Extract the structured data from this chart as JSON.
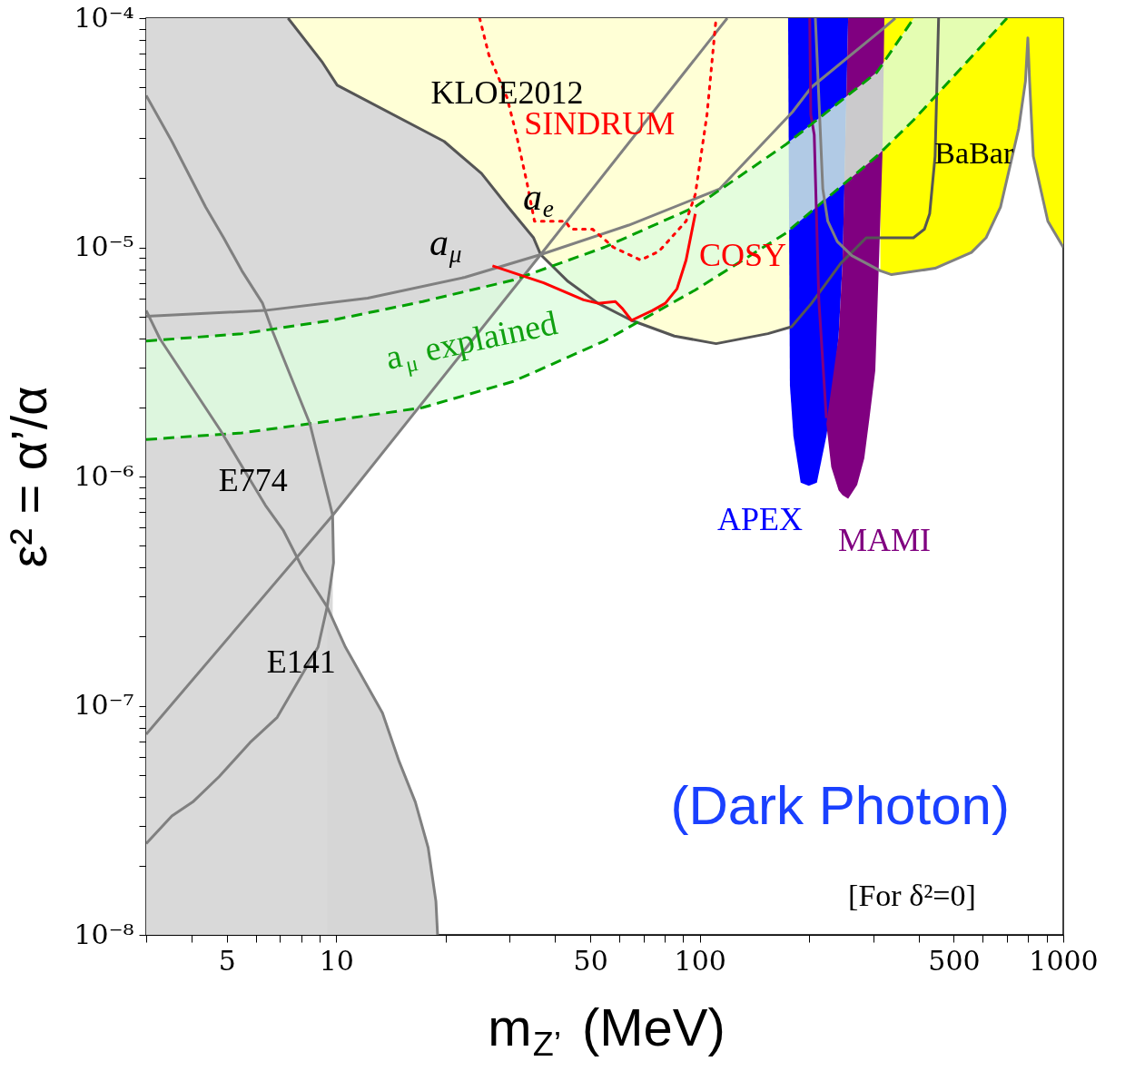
{
  "chart_data": {
    "type": "line",
    "xlabel": "m$_{Z’}$ (MeV)",
    "ylabel": "ε² = α’/α",
    "log": "xy",
    "grid": false,
    "xlim": [
      3,
      1000
    ],
    "ylim": [
      1e-08,
      0.0001
    ],
    "xticks": [
      {
        "value": 3,
        "label": null
      },
      {
        "value": 4,
        "label": null
      },
      5,
      {
        "value": 6,
        "label": null
      },
      {
        "value": 7,
        "label": null
      },
      {
        "value": 8,
        "label": null
      },
      {
        "value": 9,
        "label": null
      },
      10,
      {
        "value": 20,
        "label": null
      },
      {
        "value": 30,
        "label": null
      },
      {
        "value": 40,
        "label": null
      },
      50,
      {
        "value": 60,
        "label": null
      },
      {
        "value": 70,
        "label": null
      },
      {
        "value": 80,
        "label": null
      },
      {
        "value": 90,
        "label": null
      },
      100,
      {
        "value": 200,
        "label": null
      },
      {
        "value": 300,
        "label": null
      },
      {
        "value": 400,
        "label": null
      },
      500,
      {
        "value": 600,
        "label": null
      },
      {
        "value": 700,
        "label": null
      },
      {
        "value": 800,
        "label": null
      },
      {
        "value": 900,
        "label": null
      },
      1000
    ],
    "yticks": [
      {
        "value": 1e-08,
        "label": "10⁻⁸"
      },
      {
        "value": 2e-08,
        "label": null
      },
      {
        "value": 3e-08,
        "label": null
      },
      {
        "value": 4e-08,
        "label": null
      },
      {
        "value": 5e-08,
        "label": null
      },
      {
        "value": 6e-08,
        "label": null
      },
      {
        "value": 7e-08,
        "label": null
      },
      {
        "value": 8e-08,
        "label": null
      },
      {
        "value": 9e-08,
        "label": null
      },
      {
        "value": 1e-07,
        "label": "10⁻⁷"
      },
      {
        "value": 2e-07,
        "label": null
      },
      {
        "value": 3e-07,
        "label": null
      },
      {
        "value": 4e-07,
        "label": null
      },
      {
        "value": 5e-07,
        "label": null
      },
      {
        "value": 6e-07,
        "label": null
      },
      {
        "value": 7e-07,
        "label": null
      },
      {
        "value": 8e-07,
        "label": null
      },
      {
        "value": 9e-07,
        "label": null
      },
      {
        "value": 1e-06,
        "label": "10⁻⁶"
      },
      {
        "value": 2e-06,
        "label": null
      },
      {
        "value": 3e-06,
        "label": null
      },
      {
        "value": 4e-06,
        "label": null
      },
      {
        "value": 5e-06,
        "label": null
      },
      {
        "value": 6e-06,
        "label": null
      },
      {
        "value": 7e-06,
        "label": null
      },
      {
        "value": 8e-06,
        "label": null
      },
      {
        "value": 9e-06,
        "label": null
      },
      {
        "value": 1e-05,
        "label": "10⁻⁵"
      },
      {
        "value": 2e-05,
        "label": null
      },
      {
        "value": 3e-05,
        "label": null
      },
      {
        "value": 4e-05,
        "label": null
      },
      {
        "value": 5e-05,
        "label": null
      },
      {
        "value": 6e-05,
        "label": null
      },
      {
        "value": 7e-05,
        "label": null
      },
      {
        "value": 8e-05,
        "label": null
      },
      {
        "value": 9e-05,
        "label": null
      },
      {
        "value": 0.0001,
        "label": "10⁻⁴"
      }
    ],
    "annotations": [
      "KLOE2012",
      "SINDRUM",
      "a$_{e}$",
      "a$_{μ}$",
      "a$_{μ}$ explained",
      "COSY",
      "BaBar",
      "APEX",
      "MAMI",
      "E774",
      "E141",
      "(Dark Photon)",
      "[For δ²=0]"
    ],
    "series": [
      {
        "color": "#d9d9d9",
        "x": [
          3,
          7.37,
          9.17,
          9.7,
          9.8,
          10.06,
          19.8,
          25.1,
          29.7,
          34.9,
          36.5
        ],
        "values": [
          null,
          null,
          null,
          null,
          null,
          null,
          null,
          null,
          null,
          null,
          null
        ],
        "upper": [
          0.0001,
          0.0001,
          6.4e-05,
          5.5e-05,
          5.4e-05,
          5.1e-05,
          2.9e-05,
          2.1e-05,
          1.5e-05,
          1.1e-05,
          9.3e-06
        ],
        "lower": [
          1e-08,
          1e-08,
          1e-08,
          1e-08,
          6.8e-07,
          7.3e-07,
          2.8e-06,
          4.4e-06,
          6.2e-06,
          8.5e-06,
          9.3e-06
        ]
      },
      {
        "color": "#d6d6d6",
        "x": [
          9.44,
          10.6,
          13.4,
          14.9,
          16.5,
          17.9,
          18.8,
          19.0
        ],
        "values": [
          null,
          null,
          null,
          null,
          null,
          null,
          null,
          null
        ],
        "upper": [
          2.7e-07,
          1.8e-07,
          9.3e-08,
          5.7e-08,
          3.8e-08,
          2.4e-08,
          1.4e-08,
          1e-08
        ],
        "lower": [
          1e-08,
          1e-08,
          1e-08,
          1e-08,
          1e-08,
          1e-08,
          1e-08,
          1e-08
        ]
      },
      {
        "color": "#ffffd6",
        "x": [
          7.37,
          9.17,
          10.06,
          19.8,
          25.1,
          29.7,
          34.9,
          36.5,
          43.4,
          52.5,
          64.9,
          85.1,
          110.9,
          154,
          178.9,
          203,
          244,
          287,
          314.5,
          387,
          415,
          429,
          444,
          454
        ],
        "values": [
          null,
          null,
          null,
          null,
          null,
          null,
          null,
          null,
          null,
          null,
          null,
          null,
          null,
          null,
          null,
          null,
          null,
          null,
          null,
          null,
          null,
          null,
          null,
          null
        ],
        "lower": [
          0.0001,
          6.4e-05,
          5.1e-05,
          2.9e-05,
          2.1e-05,
          1.5e-05,
          1.1e-05,
          9.3e-06,
          7.1e-06,
          5.7e-06,
          4.8e-06,
          4.1e-06,
          3.8e-06,
          4.2e-06,
          4.5e-06,
          5.7e-06,
          8.5e-06,
          1.1e-05,
          1.1e-05,
          1.1e-05,
          1.2e-05,
          1.4e-05,
          2.5e-05,
          0.0001
        ],
        "upper": [
          0.0001,
          0.0001,
          0.0001,
          0.0001,
          0.0001,
          0.0001,
          0.0001,
          0.0001,
          0.0001,
          0.0001,
          0.0001,
          0.0001,
          0.0001,
          0.0001,
          0.0001,
          0.0001,
          0.0001,
          0.0001,
          0.0001,
          0.0001,
          0.0001,
          0.0001,
          0.0001,
          0.0001
        ]
      },
      {
        "color": "#ffff00",
        "x": [
          314,
          337,
          444,
          559,
          613,
          672,
          754,
          787,
          799,
          808,
          827,
          907,
          1000
        ],
        "values": [
          null,
          null,
          null,
          null,
          null,
          null,
          null,
          null,
          null,
          null,
          null,
          null,
          null
        ],
        "upper": [
          0.0001,
          0.0001,
          0.0001,
          0.0001,
          0.0001,
          0.0001,
          0.0001,
          0.0001,
          0.0001,
          0.0001,
          0.0001,
          0.0001,
          0.0001
        ],
        "lower": [
          7.9e-06,
          7.6e-06,
          8.1e-06,
          9.5e-06,
          1.1e-05,
          1.5e-05,
          3.3e-05,
          5.3e-05,
          8.2e-05,
          5.3e-05,
          2.5e-05,
          1.3e-05,
          1e-05
        ]
      },
      {
        "color": "#0000ff",
        "x": [
          175,
          177,
          181,
          189.5,
          199.5,
          210,
          223,
          233,
          241,
          247,
          250,
          256
        ],
        "values": [
          null,
          null,
          null,
          null,
          null,
          null,
          null,
          null,
          null,
          null,
          null,
          null
        ],
        "lower": [
          0.0001,
          2.5e-06,
          1.5e-06,
          9.4e-07,
          9.1e-07,
          9.4e-07,
          1.5e-06,
          2.4e-06,
          4.1e-06,
          8.5e-06,
          1.8e-05,
          0.0001
        ],
        "upper": [
          0.0001,
          0.0001,
          0.0001,
          0.0001,
          0.0001,
          0.0001,
          0.0001,
          0.0001,
          0.0001,
          0.0001,
          0.0001,
          0.0001
        ]
      },
      {
        "color": "#800080",
        "x": [
          223,
          230,
          241,
          247,
          256,
          271,
          283.5,
          293,
          304,
          311,
          318,
          322
        ],
        "values": [
          null,
          null,
          null,
          null,
          null,
          null,
          null,
          null,
          null,
          null,
          null,
          null
        ],
        "lower": [
          1.7e-06,
          1.1e-06,
          8.7e-07,
          8.3e-07,
          8e-07,
          9.2e-07,
          1.2e-06,
          1.8e-06,
          2.9e-06,
          8.5e-06,
          2.5e-05,
          0.0001
        ],
        "upper": [
          1.7e-06,
          2.4e-06,
          4.1e-06,
          8.5e-06,
          0.0001,
          0.0001,
          0.0001,
          0.0001,
          0.0001,
          0.0001,
          0.0001,
          0.0001
        ]
      },
      {
        "color": "#ddfcdf",
        "x": [
          3,
          5.5,
          9.7,
          17.3,
          30.7,
          54.6,
          97,
          172,
          307,
          388,
          700
        ],
        "values": [
          null,
          null,
          null,
          null,
          null,
          null,
          null,
          null,
          null,
          null,
          null
        ],
        "lower": [
          1.45e-06,
          1.55e-06,
          1.75e-06,
          2e-06,
          2.6e-06,
          3.9e-06,
          6.5e-06,
          1.15e-05,
          2.5e-05,
          3.6e-05,
          0.0001
        ],
        "upper": [
          3.9e-06,
          4.2e-06,
          4.8e-06,
          5.8e-06,
          7.2e-06,
          1e-05,
          1.5e-05,
          2.8e-05,
          5.8e-05,
          0.0001,
          0.0001
        ]
      },
      {
        "color": "#555555",
        "x": [
          7.37,
          9.17,
          10.06,
          19.8,
          25.1,
          29.7,
          34.9,
          36.5,
          43.4,
          52.5,
          64.9,
          85.1,
          110.9,
          154,
          178.9,
          203,
          244,
          287,
          314.5,
          387,
          415,
          429,
          444,
          454
        ],
        "values": [
          0.0001,
          6.4e-05,
          5.1e-05,
          2.9e-05,
          2.1e-05,
          1.5e-05,
          1.1e-05,
          9.3e-06,
          7.1e-06,
          5.7e-06,
          4.8e-06,
          4.1e-06,
          3.8e-06,
          4.2e-06,
          4.5e-06,
          5.7e-06,
          8.5e-06,
          1.1e-05,
          1.1e-05,
          1.1e-05,
          1.2e-05,
          1.4e-05,
          2.5e-05,
          0.0001
        ]
      },
      {
        "color": "#00a000",
        "line_style": "dashed",
        "x": [
          3,
          5.5,
          9.7,
          17.3,
          30.7,
          54.6,
          97,
          172,
          307,
          388,
          700
        ],
        "values": [
          1.45e-06,
          1.55e-06,
          1.75e-06,
          2e-06,
          2.6e-06,
          3.9e-06,
          6.5e-06,
          1.15e-05,
          2.5e-05,
          3.6e-05,
          0.0001
        ]
      },
      {
        "color": "#808080",
        "x": [
          3,
          6.35,
          12.2,
          22.6,
          36.5,
          63.8,
          113.5,
          180,
          203,
          322,
          345
        ],
        "values": [
          5e-06,
          5.3e-06,
          6e-06,
          7.4e-06,
          9.3e-06,
          1.25e-05,
          1.8e-05,
          3.9e-05,
          5e-05,
          9.1e-05,
          0.0001
        ]
      },
      {
        "color": "#808080",
        "x": [
          3,
          9.8,
          36.5,
          119
        ],
        "values": [
          7.5e-08,
          6.8e-07,
          9.3e-06,
          0.0001
        ]
      },
      {
        "color": "#808080",
        "x": [
          3,
          3.27,
          4.79,
          5.72,
          6.38,
          7.16,
          8.13,
          9.44,
          10.6,
          13.4,
          14.9,
          16.5,
          17.9,
          18.8,
          19.0
        ],
        "values": [
          5.3e-06,
          4e-06,
          1.6e-06,
          1e-06,
          7.5e-07,
          5.8e-07,
          3.9e-07,
          2.7e-07,
          1.8e-07,
          9.3e-08,
          5.7e-08,
          3.8e-08,
          2.4e-08,
          1.4e-08,
          1e-08
        ]
      },
      {
        "color": "#808080",
        "x": [
          3,
          3.53,
          4.37,
          4.9,
          5.5,
          6.27,
          6.68,
          8.46,
          9.77,
          9.83,
          9.44,
          8.91,
          6.88,
          5.79,
          4.76,
          4.03,
          3.53,
          3
        ],
        "values": [
          4.6e-05,
          2.9e-05,
          1.5e-05,
          1.1e-05,
          7.9e-06,
          5.7e-06,
          4.3e-06,
          1.7e-06,
          6.8e-07,
          4.2e-07,
          2.7e-07,
          1.8e-07,
          8.9e-08,
          6.9e-08,
          4.9e-08,
          3.8e-08,
          3.3e-08,
          2.5e-08
        ]
      },
      {
        "color": "#808080",
        "x": [
          208,
          218,
          225,
          239,
          262,
          314,
          337,
          444,
          559,
          613,
          672,
          754,
          787,
          799,
          808,
          827,
          907,
          1000
        ],
        "values": [
          0.0001,
          1.8e-05,
          1.3e-05,
          1.06e-05,
          9.2e-06,
          7.9e-06,
          7.6e-06,
          8.1e-06,
          9.5e-06,
          1.1e-05,
          1.5e-05,
          3.3e-05,
          5.3e-05,
          8.2e-05,
          5.3e-05,
          2.5e-05,
          1.3e-05,
          1e-05
        ]
      },
      {
        "color": "#800080",
        "x": [
          200.7,
          202,
          206.5,
          212.6,
          223
        ],
        "values": [
          0.0001,
          3.8e-05,
          3.1e-05,
          5.9e-06,
          1.8e-06
        ]
      },
      {
        "color": "#00a000",
        "line_style": "dashed",
        "x": [
          3,
          5.5,
          9.7,
          17.3,
          30.7,
          54.6,
          97,
          172,
          307,
          388
        ],
        "values": [
          3.9e-06,
          4.2e-06,
          4.8e-06,
          5.8e-06,
          7.2e-06,
          1e-05,
          1.5e-05,
          2.8e-05,
          5.8e-05,
          0.0001
        ]
      },
      {
        "color": "#ff0000",
        "line_style": "dotted",
        "x": [
          24.8,
          26.3,
          29.5,
          31.3,
          33.5,
          35.1,
          42.7,
          44.2,
          50.7,
          57.9,
          68.8,
          77.2,
          91.7,
          97.2,
          104.7,
          110.9
        ],
        "values": [
          0.0001,
          6.9e-05,
          4.5e-05,
          3.1e-05,
          1.9e-05,
          1.3e-05,
          1.3e-05,
          1.2e-05,
          1.2e-05,
          1e-05,
          8.8e-06,
          9.6e-06,
          1.3e-05,
          1.7e-05,
          3.8e-05,
          0.0001
        ]
      },
      {
        "color": "#ff0000",
        "x": [
          26.9,
          37.2,
          47.9,
          52.5,
          58.6,
          61.3,
          64.9,
          74.1,
          80.4,
          86.6,
          91.7,
          97.2
        ],
        "values": [
          8.3e-06,
          7e-06,
          5.9e-06,
          5.7e-06,
          5.8e-06,
          5.4e-06,
          4.8e-06,
          5.3e-06,
          5.7e-06,
          6.6e-06,
          8.8e-06,
          1.4e-05
        ]
      }
    ]
  }
}
